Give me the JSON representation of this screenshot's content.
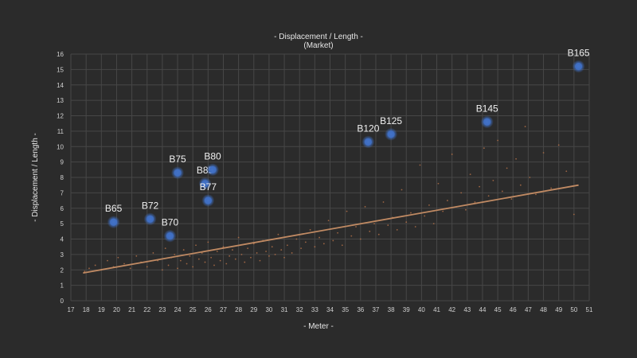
{
  "chart_data": {
    "type": "scatter",
    "title": "- Displacement / Length -",
    "subtitle": "(Market)",
    "xlabel": "- Meter -",
    "ylabel": "- Displacement  / Length -",
    "xlim": [
      17,
      51
    ],
    "ylim": [
      0,
      16
    ],
    "xticks": [
      17,
      18,
      19,
      20,
      21,
      22,
      23,
      24,
      25,
      26,
      27,
      28,
      29,
      30,
      31,
      32,
      33,
      34,
      35,
      36,
      37,
      38,
      39,
      40,
      41,
      42,
      43,
      44,
      45,
      46,
      47,
      48,
      49,
      50,
      51
    ],
    "yticks": [
      0,
      1,
      2,
      3,
      4,
      5,
      6,
      7,
      8,
      9,
      10,
      11,
      12,
      13,
      14,
      15,
      16
    ],
    "grid": true,
    "colors": {
      "background": "#2b2b2b",
      "grid": "#474747",
      "highlight": "#3f6fc4",
      "trend": "#c08a63",
      "market": "#b8734a"
    },
    "highlighted": [
      {
        "label": "B65",
        "x": 19.8,
        "y": 5.1
      },
      {
        "label": "B72",
        "x": 22.2,
        "y": 5.3
      },
      {
        "label": "B70",
        "x": 23.5,
        "y": 4.2
      },
      {
        "label": "B75",
        "x": 24.0,
        "y": 8.3
      },
      {
        "label": "B85",
        "x": 25.8,
        "y": 7.6
      },
      {
        "label": "B80",
        "x": 26.3,
        "y": 8.5
      },
      {
        "label": "B77",
        "x": 26.0,
        "y": 6.5
      },
      {
        "label": "B120",
        "x": 36.5,
        "y": 10.3
      },
      {
        "label": "B125",
        "x": 38.0,
        "y": 10.8
      },
      {
        "label": "B145",
        "x": 44.3,
        "y": 11.6
      },
      {
        "label": "B165",
        "x": 50.3,
        "y": 15.2
      }
    ],
    "trendline": {
      "x": [
        17.8,
        50.3
      ],
      "y": [
        1.8,
        7.5
      ]
    },
    "market_points": [
      [
        17.9,
        1.9
      ],
      [
        18.2,
        2.1
      ],
      [
        18.6,
        2.3
      ],
      [
        19.0,
        2.0
      ],
      [
        19.4,
        2.6
      ],
      [
        19.8,
        2.2
      ],
      [
        20.1,
        2.8
      ],
      [
        20.5,
        2.4
      ],
      [
        20.9,
        2.1
      ],
      [
        21.3,
        2.9
      ],
      [
        21.6,
        2.5
      ],
      [
        22.0,
        2.2
      ],
      [
        22.4,
        3.1
      ],
      [
        22.7,
        2.6
      ],
      [
        23.0,
        2.0
      ],
      [
        23.2,
        3.4
      ],
      [
        23.4,
        2.3
      ],
      [
        23.6,
        2.8
      ],
      [
        23.8,
        3.0
      ],
      [
        24.0,
        2.1
      ],
      [
        24.2,
        2.6
      ],
      [
        24.4,
        3.3
      ],
      [
        24.6,
        2.4
      ],
      [
        24.8,
        2.9
      ],
      [
        25.0,
        2.2
      ],
      [
        25.2,
        3.6
      ],
      [
        25.4,
        2.7
      ],
      [
        25.6,
        3.1
      ],
      [
        25.8,
        2.5
      ],
      [
        26.0,
        3.8
      ],
      [
        26.2,
        2.8
      ],
      [
        26.4,
        2.3
      ],
      [
        26.6,
        3.2
      ],
      [
        26.8,
        2.6
      ],
      [
        27.0,
        3.5
      ],
      [
        27.2,
        2.4
      ],
      [
        27.4,
        2.9
      ],
      [
        27.6,
        3.3
      ],
      [
        27.8,
        2.7
      ],
      [
        28.0,
        4.1
      ],
      [
        28.2,
        3.0
      ],
      [
        28.4,
        2.5
      ],
      [
        28.6,
        3.4
      ],
      [
        28.8,
        2.8
      ],
      [
        29.0,
        3.7
      ],
      [
        29.2,
        3.1
      ],
      [
        29.4,
        2.6
      ],
      [
        29.6,
        3.9
      ],
      [
        29.8,
        3.2
      ],
      [
        30.0,
        2.9
      ],
      [
        30.2,
        3.5
      ],
      [
        30.4,
        3.0
      ],
      [
        30.6,
        4.3
      ],
      [
        30.8,
        3.3
      ],
      [
        31.0,
        2.8
      ],
      [
        31.2,
        3.6
      ],
      [
        31.5,
        3.1
      ],
      [
        31.8,
        4.0
      ],
      [
        32.1,
        3.4
      ],
      [
        32.4,
        3.8
      ],
      [
        32.7,
        4.6
      ],
      [
        33.0,
        3.5
      ],
      [
        33.3,
        4.1
      ],
      [
        33.6,
        3.7
      ],
      [
        33.9,
        5.2
      ],
      [
        34.2,
        3.9
      ],
      [
        34.5,
        4.4
      ],
      [
        34.8,
        3.6
      ],
      [
        35.1,
        5.8
      ],
      [
        35.4,
        4.2
      ],
      [
        35.7,
        4.8
      ],
      [
        36.0,
        4.0
      ],
      [
        36.3,
        6.1
      ],
      [
        36.6,
        4.5
      ],
      [
        36.9,
        5.0
      ],
      [
        37.2,
        4.3
      ],
      [
        37.5,
        6.4
      ],
      [
        37.8,
        4.9
      ],
      [
        38.1,
        5.4
      ],
      [
        38.4,
        4.6
      ],
      [
        38.7,
        7.2
      ],
      [
        39.0,
        5.1
      ],
      [
        39.3,
        5.7
      ],
      [
        39.6,
        4.8
      ],
      [
        39.9,
        8.8
      ],
      [
        40.2,
        5.5
      ],
      [
        40.5,
        6.2
      ],
      [
        40.8,
        5.0
      ],
      [
        41.1,
        7.6
      ],
      [
        41.4,
        5.8
      ],
      [
        41.7,
        6.5
      ],
      [
        42.0,
        9.5
      ],
      [
        42.3,
        6.1
      ],
      [
        42.6,
        7.0
      ],
      [
        42.9,
        5.9
      ],
      [
        43.2,
        8.2
      ],
      [
        43.5,
        6.4
      ],
      [
        43.8,
        7.4
      ],
      [
        44.1,
        9.9
      ],
      [
        44.4,
        6.8
      ],
      [
        44.7,
        7.8
      ],
      [
        45.0,
        10.4
      ],
      [
        45.3,
        7.1
      ],
      [
        45.6,
        8.6
      ],
      [
        45.9,
        6.6
      ],
      [
        46.2,
        9.2
      ],
      [
        46.5,
        7.5
      ],
      [
        46.8,
        11.3
      ],
      [
        47.1,
        8.0
      ],
      [
        47.5,
        6.9
      ],
      [
        48.0,
        9.6
      ],
      [
        48.5,
        7.3
      ],
      [
        49.0,
        10.1
      ],
      [
        49.5,
        8.4
      ],
      [
        50.0,
        5.6
      ]
    ]
  }
}
